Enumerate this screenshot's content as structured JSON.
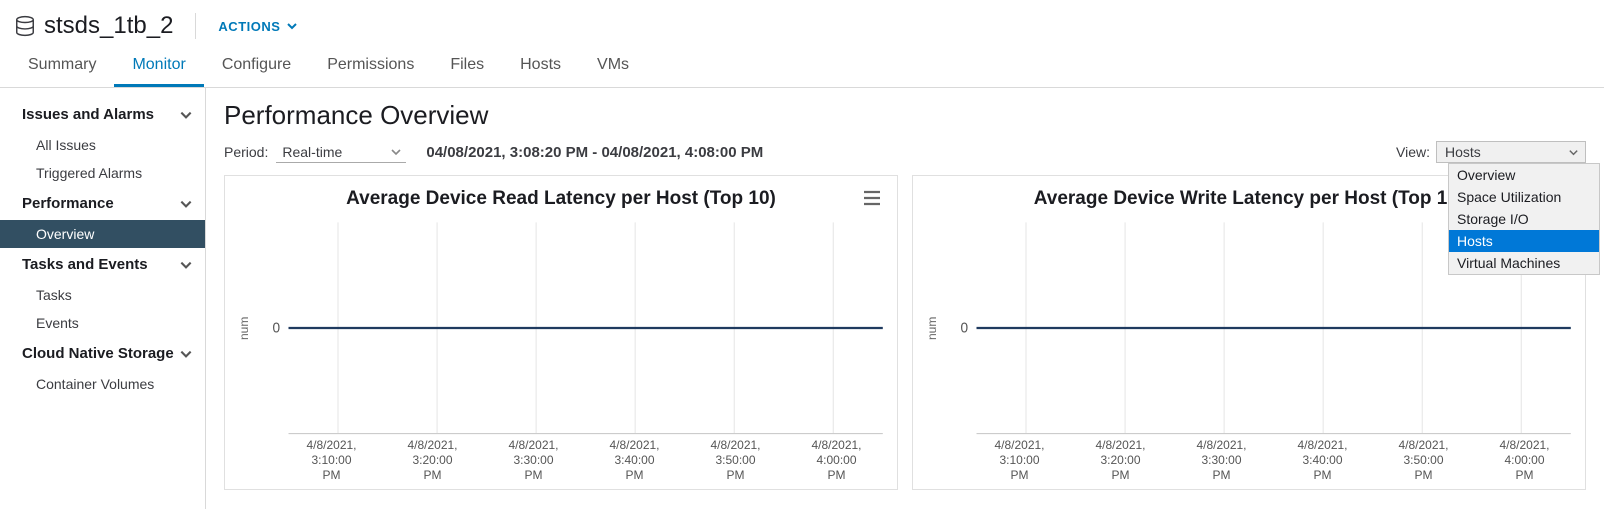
{
  "object": {
    "title": "stsds_1tb_2"
  },
  "actions": {
    "label": "ACTIONS"
  },
  "tabs": [
    {
      "label": "Summary",
      "active": false
    },
    {
      "label": "Monitor",
      "active": true
    },
    {
      "label": "Configure",
      "active": false
    },
    {
      "label": "Permissions",
      "active": false
    },
    {
      "label": "Files",
      "active": false
    },
    {
      "label": "Hosts",
      "active": false
    },
    {
      "label": "VMs",
      "active": false
    }
  ],
  "sidebar": [
    {
      "group": "Issues and Alarms",
      "items": [
        "All Issues",
        "Triggered Alarms"
      ]
    },
    {
      "group": "Performance",
      "items": [
        "Overview"
      ],
      "selected": "Overview"
    },
    {
      "group": "Tasks and Events",
      "items": [
        "Tasks",
        "Events"
      ]
    },
    {
      "group": "Cloud Native Storage",
      "items": [
        "Container Volumes"
      ]
    }
  ],
  "page": {
    "title": "Performance Overview"
  },
  "period": {
    "label": "Period:",
    "value": "Real-time"
  },
  "range": {
    "text": "04/08/2021, 3:08:20 PM - 04/08/2021, 4:08:00 PM"
  },
  "view": {
    "label": "View:",
    "value": "Hosts",
    "options": [
      "Overview",
      "Space Utilization",
      "Storage I/O",
      "Hosts",
      "Virtual Machines"
    ],
    "highlighted": "Hosts"
  },
  "charts": [
    {
      "title": "Average Device Read Latency per Host (Top 10)",
      "y_label": "num",
      "y_ticks": [
        "0"
      ],
      "y_range": [
        -1,
        1
      ],
      "line_color": "#1f3a5f",
      "grid_color": "#e6e6e6",
      "axis_color": "#cccccc",
      "series": {
        "value": 0
      },
      "x_ticks": [
        "4/8/2021,\n3:10:00\nPM",
        "4/8/2021,\n3:20:00\nPM",
        "4/8/2021,\n3:30:00\nPM",
        "4/8/2021,\n3:40:00\nPM",
        "4/8/2021,\n3:50:00\nPM",
        "4/8/2021,\n4:00:00\nPM"
      ]
    },
    {
      "title": "Average Device Write Latency per Host (Top 10)",
      "y_label": "num",
      "y_ticks": [
        "0"
      ],
      "y_range": [
        -1,
        1
      ],
      "line_color": "#1f3a5f",
      "grid_color": "#e6e6e6",
      "axis_color": "#cccccc",
      "series": {
        "value": 0
      },
      "x_ticks": [
        "4/8/2021,\n3:10:00\nPM",
        "4/8/2021,\n3:20:00\nPM",
        "4/8/2021,\n3:30:00\nPM",
        "4/8/2021,\n3:40:00\nPM",
        "4/8/2021,\n3:50:00\nPM",
        "4/8/2021,\n4:00:00\nPM"
      ]
    }
  ],
  "colors": {
    "accent": "#0079b8",
    "selected_bg": "#324f62"
  }
}
